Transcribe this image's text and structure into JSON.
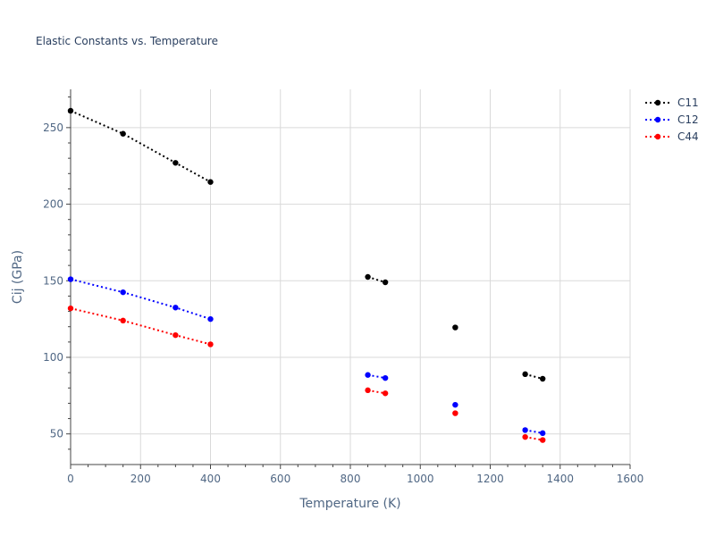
{
  "chart_data": {
    "type": "line",
    "title": "Elastic Constants vs. Temperature",
    "xlabel": "Temperature (K)",
    "ylabel": "Cij (GPa)",
    "xlim": [
      0,
      1600
    ],
    "ylim": [
      30,
      275
    ],
    "xticks": [
      0,
      200,
      400,
      600,
      800,
      1000,
      1200,
      1400,
      1600
    ],
    "yticks": [
      50,
      100,
      150,
      200,
      250
    ],
    "grid": true,
    "legend_position": "top-right",
    "series": [
      {
        "name": "C11",
        "color": "#000000",
        "segments": [
          [
            [
              0,
              261
            ],
            [
              150,
              246
            ],
            [
              300,
              227
            ],
            [
              400,
              214.5
            ]
          ],
          [
            [
              850,
              152.5
            ],
            [
              900,
              149
            ]
          ],
          [
            [
              1100,
              119.5
            ]
          ],
          [
            [
              1300,
              89
            ],
            [
              1350,
              86
            ]
          ]
        ]
      },
      {
        "name": "C12",
        "color": "#0000ff",
        "segments": [
          [
            [
              0,
              151
            ],
            [
              150,
              142.5
            ],
            [
              300,
              132.5
            ],
            [
              400,
              125
            ]
          ],
          [
            [
              850,
              88.5
            ],
            [
              900,
              86.5
            ]
          ],
          [
            [
              1100,
              69
            ]
          ],
          [
            [
              1300,
              52.5
            ],
            [
              1350,
              50.5
            ]
          ]
        ]
      },
      {
        "name": "C44",
        "color": "#ff0000",
        "segments": [
          [
            [
              0,
              132
            ],
            [
              150,
              124
            ],
            [
              300,
              114.5
            ],
            [
              400,
              108.5
            ]
          ],
          [
            [
              850,
              78.5
            ],
            [
              900,
              76.5
            ]
          ],
          [
            [
              1100,
              63.5
            ]
          ],
          [
            [
              1300,
              48
            ],
            [
              1350,
              46
            ]
          ]
        ]
      }
    ]
  }
}
